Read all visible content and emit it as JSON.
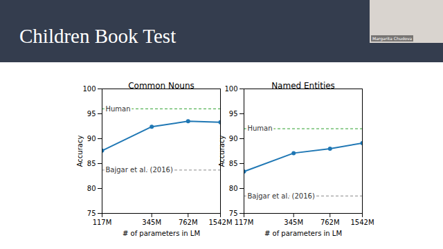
{
  "title": "Children Book Test",
  "presenter": "Margarita Chudova",
  "chart_data": [
    {
      "type": "line",
      "title": "Common Nouns",
      "xlabel": "# of parameters in LM",
      "ylabel": "Accuracy",
      "log": "x",
      "x": [
        117,
        345,
        762,
        1542
      ],
      "values": [
        87.6,
        92.4,
        93.5,
        93.3
      ],
      "color": "#1f77b4",
      "marker": "circle",
      "xlim": [
        117,
        1542
      ],
      "xticks": [
        {
          "value": 117,
          "label": "117M"
        },
        {
          "value": 345,
          "label": "345M"
        },
        {
          "value": 762,
          "label": "762M"
        },
        {
          "value": 1542,
          "label": "1542M"
        }
      ],
      "ylim": [
        75,
        100
      ],
      "yticks": [
        75,
        80,
        85,
        90,
        95,
        100
      ],
      "grid": false,
      "hlines": [
        {
          "label": "Human",
          "value": 96.0,
          "color": "#2ca02c",
          "line_style": "dashed"
        },
        {
          "label": "Bajgar et al. (2016)",
          "value": 83.7,
          "color": "#888888",
          "line_style": "dashed"
        }
      ]
    },
    {
      "type": "line",
      "title": "Named Entities",
      "xlabel": "# of parameters in LM",
      "ylabel": "Accuracy",
      "log": "x",
      "x": [
        117,
        345,
        762,
        1542
      ],
      "values": [
        83.4,
        87.1,
        88.0,
        89.1
      ],
      "color": "#1f77b4",
      "marker": "circle",
      "xlim": [
        117,
        1542
      ],
      "xticks": [
        {
          "value": 117,
          "label": "117M"
        },
        {
          "value": 345,
          "label": "345M"
        },
        {
          "value": 762,
          "label": "762M"
        },
        {
          "value": 1542,
          "label": "1542M"
        }
      ],
      "ylim": [
        75,
        100
      ],
      "yticks": [
        75,
        80,
        85,
        90,
        95,
        100
      ],
      "grid": false,
      "hlines": [
        {
          "label": "Human",
          "value": 92.0,
          "color": "#2ca02c",
          "line_style": "dashed"
        },
        {
          "label": "Bajgar et al. (2016)",
          "value": 78.5,
          "color": "#888888",
          "line_style": "dashed"
        }
      ]
    }
  ]
}
